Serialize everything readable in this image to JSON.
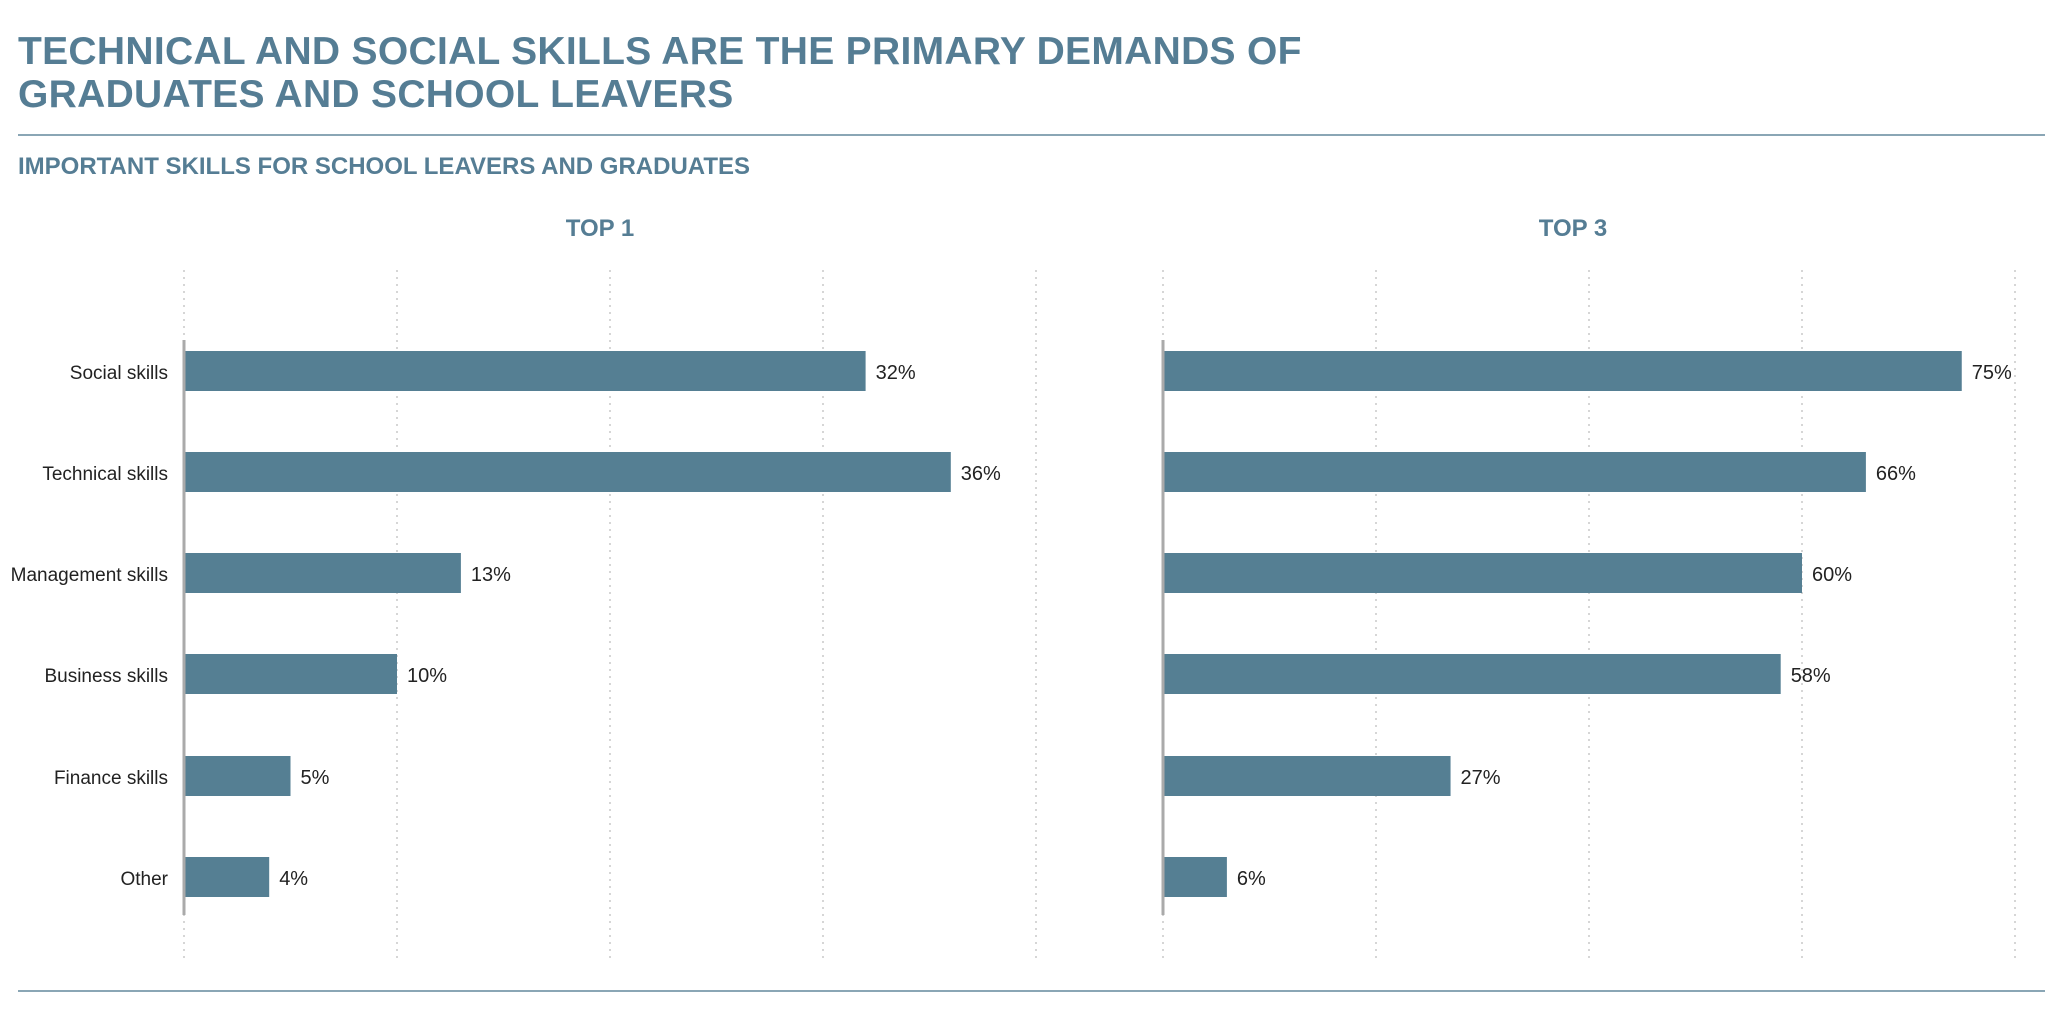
{
  "headline": "TECHNICAL AND SOCIAL SKILLS ARE THE PRIMARY DEMANDS OF GRADUATES AND SCHOOL LEAVERS",
  "subtitle": "IMPORTANT SKILLS FOR SCHOOL LEAVERS AND GRADUATES",
  "colors": {
    "bar": "#557f93",
    "heading": "#557d94",
    "grid": "#c8c8c8",
    "axis": "#aaaaaa",
    "text": "#222222"
  },
  "chart_data": [
    {
      "type": "bar",
      "orientation": "horizontal",
      "title": "TOP 1",
      "categories": [
        "Social skills",
        "Technical skills",
        "Management skills",
        "Business skills",
        "Finance skills",
        "Other"
      ],
      "values": [
        32,
        36,
        13,
        10,
        5,
        4
      ],
      "labels": [
        "32%",
        "36%",
        "13%",
        "10%",
        "5%",
        "4%"
      ],
      "xlim": [
        0,
        40
      ],
      "grid": true
    },
    {
      "type": "bar",
      "orientation": "horizontal",
      "title": "TOP 3",
      "categories": [
        "Social skills",
        "Technical skills",
        "Management skills",
        "Business skills",
        "Finance skills",
        "Other"
      ],
      "values": [
        75,
        66,
        60,
        58,
        27,
        6
      ],
      "labels": [
        "75%",
        "66%",
        "60%",
        "58%",
        "27%",
        "6%"
      ],
      "xlim": [
        0,
        80
      ],
      "grid": true
    }
  ]
}
